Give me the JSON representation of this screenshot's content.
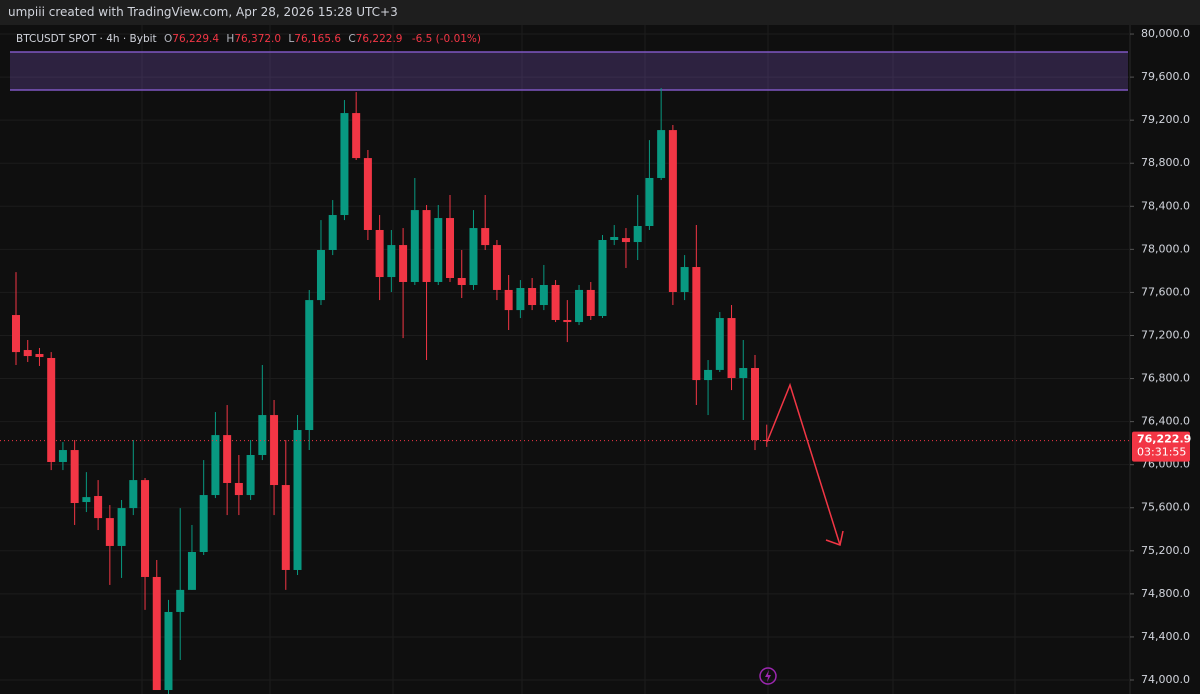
{
  "chart_data": {
    "type": "candlestick",
    "title": "umpiii created with TradingView.com, Apr 28, 2026 15:28 UTC+3",
    "legend": {
      "symbol": "BTCUSDT SPOT · 4h · Bybit",
      "o_key": "O",
      "o": "76,229.4",
      "h_key": "H",
      "h": "76,372.0",
      "l_key": "L",
      "l": "76,165.6",
      "c_key": "C",
      "c": "76,222.9",
      "change": "-6.5 (-0.01%)"
    },
    "up_color": "#089981",
    "down_color": "#f23645",
    "open": [
      77390,
      77065,
      77028,
      76991,
      76025,
      76136,
      75653,
      75709,
      75504,
      75245,
      75597,
      75857,
      74957,
      73907,
      74632,
      74837,
      75189,
      75718,
      76275,
      75830,
      75718,
      76090,
      76461,
      75811,
      75022,
      76322,
      77529,
      77994,
      78319,
      79266,
      78848,
      78180,
      77743,
      78040,
      77697,
      78365,
      77697,
      78291,
      77734,
      77669,
      78198,
      78040,
      77623,
      77436,
      77641,
      77483,
      77669,
      77344,
      77325,
      77623,
      77381,
      78087,
      78105,
      78068,
      78217,
      78663,
      79108,
      77604,
      77836,
      76786,
      76880,
      77362,
      76805,
      76898,
      76229.4
    ],
    "high": [
      77789,
      77158,
      77084,
      77046,
      76210,
      76229,
      75931,
      75857,
      75625,
      75672,
      76229,
      75876,
      75115,
      74744,
      75597,
      75440,
      76043,
      76489,
      76554,
      76090,
      76229,
      76926,
      76601,
      76229,
      76461,
      77623,
      78272,
      78458,
      79387,
      79461,
      78923,
      78319,
      78180,
      78198,
      78663,
      78412,
      78412,
      78505,
      77994,
      78365,
      78505,
      78087,
      77762,
      77715,
      77734,
      77855,
      77715,
      77529,
      77669,
      77697,
      78133,
      78226,
      78198,
      78505,
      79015,
      79498,
      79155,
      77947,
      78226,
      76972,
      77418,
      77483,
      77158,
      77019,
      76372
    ],
    "low": [
      76926,
      76954,
      76917,
      75950,
      75950,
      75440,
      75560,
      75393,
      74883,
      74948,
      75532,
      74651,
      73907,
      73870,
      74186,
      74837,
      75161,
      75690,
      75532,
      75532,
      75672,
      76043,
      75532,
      74837,
      74975,
      76136,
      77483,
      77947,
      78272,
      78830,
      78087,
      77529,
      77604,
      77176,
      77669,
      76972,
      77669,
      77697,
      77548,
      77623,
      77994,
      77529,
      77251,
      77362,
      77436,
      77436,
      77325,
      77139,
      77297,
      77344,
      77362,
      78040,
      77827,
      77901,
      78180,
      78644,
      77483,
      77529,
      76554,
      76461,
      76861,
      76693,
      76415,
      76136,
      76165.6
    ],
    "close": [
      77046,
      77009,
      77000,
      76025,
      76136,
      75644,
      75699,
      75504,
      75245,
      75597,
      75857,
      74957,
      73907,
      74632,
      74837,
      75189,
      75718,
      76275,
      75830,
      75718,
      76090,
      76461,
      75811,
      75022,
      76322,
      77529,
      77994,
      78319,
      79266,
      78848,
      78180,
      77743,
      78040,
      77697,
      78365,
      77697,
      78291,
      77734,
      77669,
      78198,
      78040,
      77623,
      77436,
      77641,
      77483,
      77669,
      77344,
      77325,
      77623,
      77381,
      78087,
      78115,
      78068,
      78217,
      78663,
      79108,
      77604,
      77836,
      76786,
      76880,
      77362,
      76805,
      76898,
      76229,
      76222.9
    ],
    "ylim": [
      73870,
      80084
    ],
    "yticks": [
      {
        "value": 74000,
        "label": "74,000.0"
      },
      {
        "value": 74400,
        "label": "74,400.0"
      },
      {
        "value": 74800,
        "label": "74,800.0"
      },
      {
        "value": 75200,
        "label": "75,200.0"
      },
      {
        "value": 75600,
        "label": "75,600.0"
      },
      {
        "value": 76000,
        "label": "76,000.0"
      },
      {
        "value": 76400,
        "label": "76,400.0"
      },
      {
        "value": 76800,
        "label": "76,800.0"
      },
      {
        "value": 77200,
        "label": "77,200.0"
      },
      {
        "value": 77600,
        "label": "77,600.0"
      },
      {
        "value": 78000,
        "label": "78,000.0"
      },
      {
        "value": 78400,
        "label": "78,400.0"
      },
      {
        "value": 78800,
        "label": "78,800.0"
      },
      {
        "value": 79200,
        "label": "79,200.0"
      },
      {
        "value": 79600,
        "label": "79,600.0"
      },
      {
        "value": 80000,
        "label": "80,000.0"
      }
    ],
    "grid": true,
    "zone": [
      79480,
      79833
    ],
    "zone_color": "#7e57c2",
    "last_price": {
      "value": 76222.9,
      "label": "76,222.9"
    },
    "countdown": "03:31:55"
  }
}
